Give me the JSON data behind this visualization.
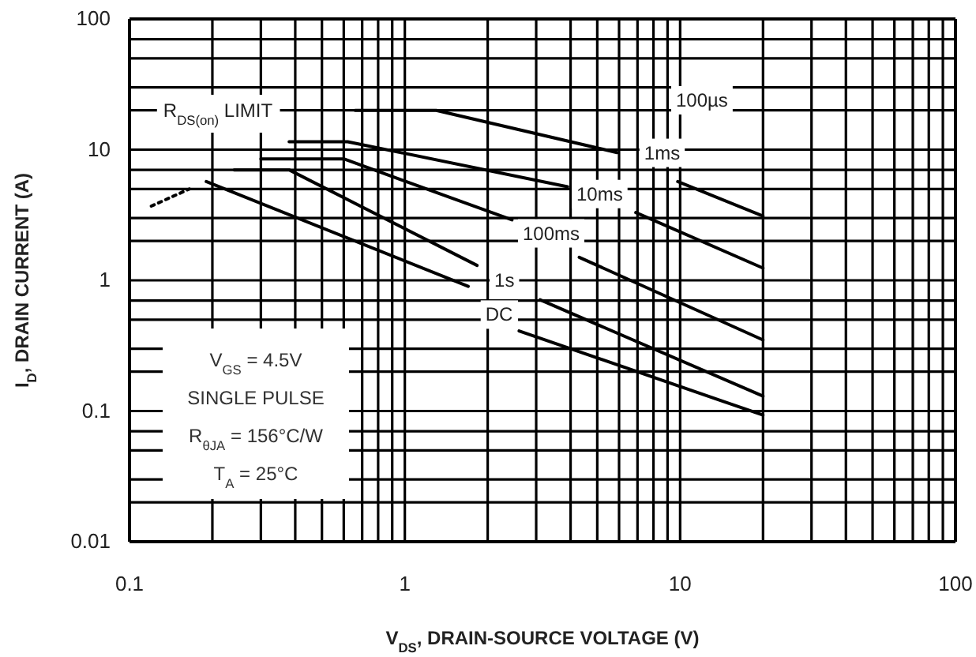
{
  "chart_data": {
    "type": "line",
    "xlabel": "V$_{DS}$, DRAIN-SOURCE VOLTAGE (V)",
    "ylabel": "I$_{D}$, DRAIN CURRENT (A)",
    "log": "xy",
    "grid": true,
    "marker": "none",
    "xlim": [
      0.1,
      100
    ],
    "ylim": [
      0.01,
      100
    ],
    "xticks": [
      0.1,
      {
        "value": 0.2,
        "label": null
      },
      {
        "value": 0.3,
        "label": null
      },
      {
        "value": 0.4,
        "label": null
      },
      {
        "value": 0.5,
        "label": null
      },
      {
        "value": 0.6,
        "label": null
      },
      {
        "value": 0.7,
        "label": null
      },
      {
        "value": 0.8,
        "label": null
      },
      {
        "value": 0.9,
        "label": null
      },
      1,
      {
        "value": 2,
        "label": null
      },
      {
        "value": 3,
        "label": null
      },
      {
        "value": 4,
        "label": null
      },
      {
        "value": 5,
        "label": null
      },
      {
        "value": 6,
        "label": null
      },
      {
        "value": 7,
        "label": null
      },
      {
        "value": 8,
        "label": null
      },
      {
        "value": 9,
        "label": null
      },
      10,
      {
        "value": 20,
        "label": null
      },
      {
        "value": 30,
        "label": null
      },
      {
        "value": 40,
        "label": null
      },
      {
        "value": 50,
        "label": null
      },
      {
        "value": 60,
        "label": null
      },
      {
        "value": 70,
        "label": null
      },
      {
        "value": 80,
        "label": null
      },
      {
        "value": 90,
        "label": null
      },
      100
    ],
    "yticks": [
      0.01,
      {
        "value": 0.02,
        "label": null
      },
      {
        "value": 0.03,
        "label": null
      },
      {
        "value": 0.05,
        "label": null
      },
      {
        "value": 0.07,
        "label": null
      },
      0.1,
      {
        "value": 0.2,
        "label": null
      },
      {
        "value": 0.3,
        "label": null
      },
      {
        "value": 0.5,
        "label": null
      },
      {
        "value": 0.7,
        "label": null
      },
      1,
      {
        "value": 2,
        "label": null
      },
      {
        "value": 3,
        "label": null
      },
      {
        "value": 5,
        "label": null
      },
      {
        "value": 7,
        "label": null
      },
      10,
      {
        "value": 20,
        "label": null
      },
      {
        "value": 30,
        "label": null
      },
      {
        "value": 50,
        "label": null
      },
      {
        "value": 70,
        "label": null
      },
      100
    ],
    "series": [
      {
        "color": "#000000",
        "line_style": "solid",
        "x": [
          0.66,
          1.3,
          5.9,
          8.6,
          9.8,
          20
        ],
        "values": [
          20,
          20,
          9.5,
          null,
          5.7,
          3.1
        ]
      },
      {
        "color": "#000000",
        "line_style": "solid",
        "x": [
          0.38,
          0.62,
          3.9,
          5.1,
          6.9,
          20
        ],
        "values": [
          11.5,
          11.5,
          5.2,
          null,
          3.3,
          1.24
        ]
      },
      {
        "color": "#000000",
        "line_style": "solid",
        "x": [
          0.3,
          0.6,
          2.45,
          3.4,
          4.3,
          20
        ],
        "values": [
          8.5,
          8.5,
          2.9,
          null,
          1.5,
          0.35
        ]
      },
      {
        "color": "#000000",
        "line_style": "solid",
        "x": [
          0.24,
          0.38,
          1.83,
          2.3,
          3.1,
          20
        ],
        "values": [
          7,
          7,
          1.3,
          null,
          0.71,
          0.13
        ]
      },
      {
        "color": "#000000",
        "line_style": "solid",
        "x": [
          0.19,
          1.7,
          2.2,
          2.6,
          20
        ],
        "values": [
          5.7,
          0.9,
          null,
          0.41,
          0.093
        ]
      },
      {
        "color": "#000000",
        "line_style": "dotted",
        "x": [
          0.12,
          0.165
        ],
        "values": [
          3.7,
          5.0
        ]
      }
    ],
    "annotations": [
      "R$_{DS(on)}$ LIMIT",
      {
        "text": "100µs",
        "x": 12,
        "y": 24
      },
      {
        "text": "1ms",
        "x": 8.6,
        "y": 9.5
      },
      {
        "text": "10ms",
        "x": 5.1,
        "y": 4.6
      },
      {
        "text": "100ms",
        "x": 3.4,
        "y": 2.3
      },
      {
        "text": "1s",
        "x": 2.3,
        "y": 1.0
      },
      {
        "text": "DC",
        "x": 2.2,
        "y": 0.55
      },
      "V$_{GS}$ = 4.5V",
      "SINGLE PULSE",
      "R$_{θJA}$ = 156°C/W",
      "T$_{A}$ = 25°C"
    ]
  }
}
